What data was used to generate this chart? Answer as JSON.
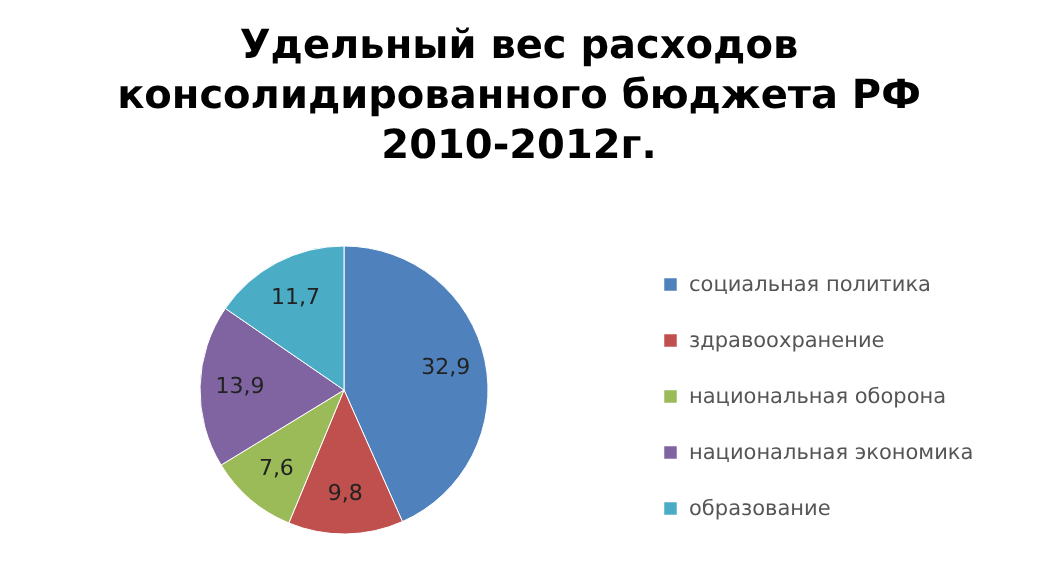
{
  "chart_data": {
    "type": "pie",
    "title": "Удельный вес расходов консолидированного бюджета РФ 2010-2012г.",
    "categories": [
      "социальная политика",
      "здравоохранение",
      "национальная оборона",
      "национальная экономика",
      "образование"
    ],
    "values": [
      32.9,
      9.8,
      7.6,
      13.9,
      11.7
    ],
    "value_labels": [
      "32,9",
      "9,8",
      "7,6",
      "13,9",
      "11,7"
    ],
    "colors": [
      "#4f81bd",
      "#c0504d",
      "#9bbb59",
      "#8064a2",
      "#4bacc6"
    ],
    "legend": "right"
  }
}
